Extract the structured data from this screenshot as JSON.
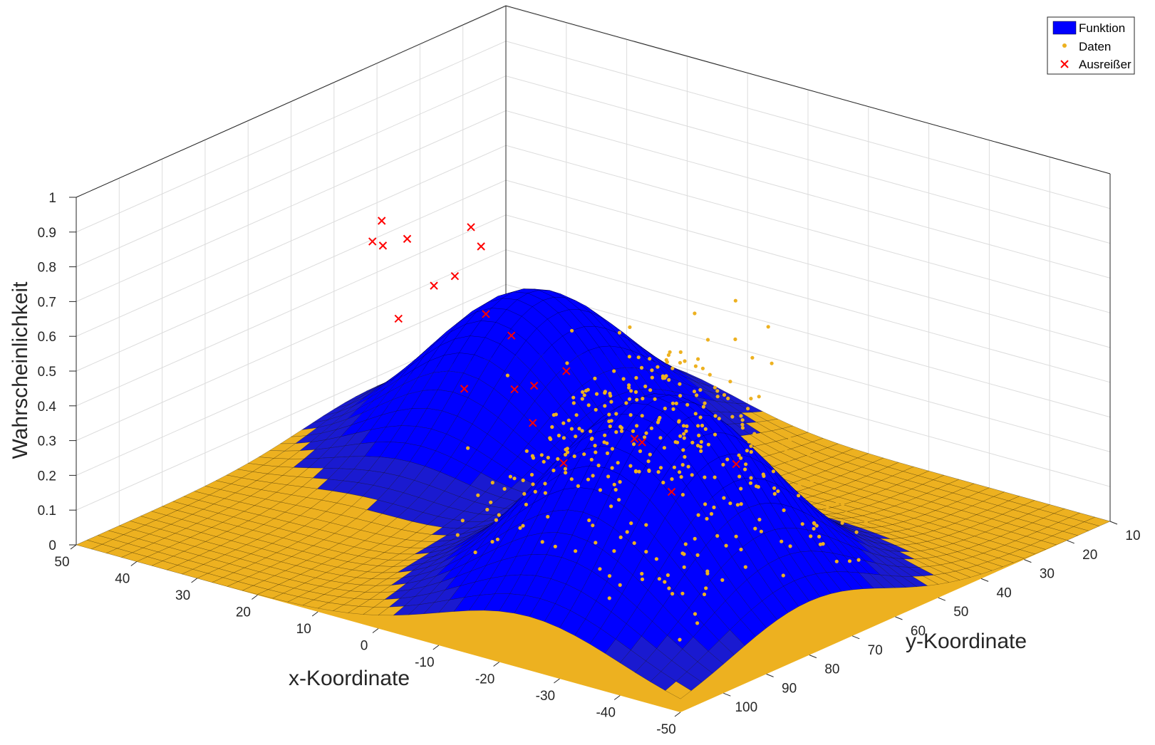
{
  "chart_data": {
    "type": "surface3d",
    "xlabel": "x-Koordinate",
    "ylabel": "y-Koordinate",
    "zlabel": "Wahrscheinlichkeit",
    "xlim": [
      -50,
      50
    ],
    "ylim": [
      0,
      100
    ],
    "zlim": [
      0,
      1
    ],
    "x_ticks": [
      "50",
      "40",
      "30",
      "20",
      "10",
      "0",
      "-10",
      "-20",
      "-30",
      "-40",
      "-50"
    ],
    "y_ticks": [
      "10",
      "20",
      "30",
      "40",
      "50",
      "60",
      "70",
      "80",
      "90",
      "100"
    ],
    "z_ticks": [
      "0",
      "0.1",
      "0.2",
      "0.3",
      "0.4",
      "0.5",
      "0.6",
      "0.7",
      "0.8",
      "0.9",
      "1"
    ],
    "grid": true,
    "legend_position": "top-right",
    "colors": {
      "surface": "#0000ff",
      "data": "#edb120",
      "outlier": "#ff0000",
      "grid": "#dcdcdc",
      "box": "#262626"
    },
    "series": [
      {
        "name": "Funktion",
        "kind": "surface",
        "color": "#0000ff"
      },
      {
        "name": "Daten",
        "kind": "points",
        "color": "#edb120"
      },
      {
        "name": "Ausreißer",
        "kind": "markers-x",
        "color": "#ff0000"
      }
    ],
    "surface_model": {
      "peaks": [
        {
          "x": -25,
          "y": 30,
          "height": 0.62,
          "spread_x": 15,
          "spread_y": 18
        },
        {
          "x": 25,
          "y": 70,
          "height": 0.46,
          "spread_x": 13,
          "spread_y": 17
        }
      ]
    },
    "outliers": [
      {
        "x": -22,
        "y": 5,
        "z": 0.67
      },
      {
        "x": -14,
        "y": 12,
        "z": 0.69
      },
      {
        "x": -36,
        "y": 9,
        "z": 0.67
      },
      {
        "x": -5,
        "y": 18,
        "z": 0.83
      },
      {
        "x": 10,
        "y": 27,
        "z": 0.79
      },
      {
        "x": 22,
        "y": 32,
        "z": 0.82
      },
      {
        "x": 28,
        "y": 38,
        "z": 0.77
      },
      {
        "x": 15,
        "y": 45,
        "z": 0.78
      },
      {
        "x": 35,
        "y": 50,
        "z": 0.73
      },
      {
        "x": 5,
        "y": 38,
        "z": 0.61
      },
      {
        "x": -8,
        "y": 25,
        "z": 0.6
      },
      {
        "x": 45,
        "y": 70,
        "z": 0.52
      },
      {
        "x": 38,
        "y": 75,
        "z": 0.56
      },
      {
        "x": -28,
        "y": 22,
        "z": 0.55
      },
      {
        "x": -40,
        "y": 12,
        "z": 0.52
      },
      {
        "x": -45,
        "y": 20,
        "z": 0.58
      },
      {
        "x": 30,
        "y": 60,
        "z": 0.54
      },
      {
        "x": 0,
        "y": 20,
        "z": 0.58
      },
      {
        "x": 18,
        "y": 30,
        "z": 0.64
      },
      {
        "x": -20,
        "y": 15,
        "z": 0.49
      },
      {
        "x": 8,
        "y": 55,
        "z": 0.4
      }
    ]
  },
  "legend": {
    "items": [
      "Funktion",
      "Daten",
      "Ausreißer"
    ]
  }
}
